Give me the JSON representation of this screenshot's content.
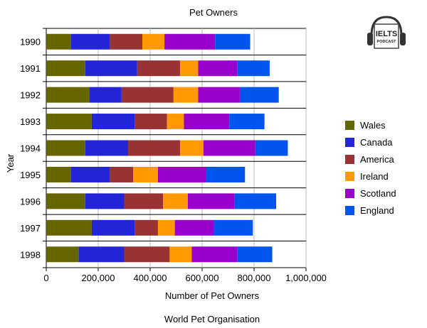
{
  "chart_data": {
    "type": "bar",
    "orientation": "horizontal",
    "stacked": true,
    "title": "Pet Owners",
    "xlabel": "Number of Pet Owners",
    "ylabel": "Year",
    "source_note": "World Pet Organisation",
    "xlim": [
      0,
      1000000
    ],
    "x_ticks": [
      "0",
      "200,000",
      "400,000",
      "600,000",
      "800,000",
      "1,000,000"
    ],
    "x_tick_values": [
      0,
      200000,
      400000,
      600000,
      800000,
      1000000
    ],
    "grid": "vertical",
    "legend_position": "right",
    "categories": [
      "1990",
      "1991",
      "1992",
      "1993",
      "1994",
      "1995",
      "1996",
      "1997",
      "1998"
    ],
    "series": [
      {
        "name": "Wales",
        "color": "#666600",
        "values": [
          95000,
          150000,
          165000,
          175000,
          150000,
          95000,
          150000,
          175000,
          125000
        ]
      },
      {
        "name": "Canada",
        "color": "#2424d8",
        "values": [
          150000,
          200000,
          125000,
          165000,
          165000,
          150000,
          150000,
          165000,
          175000
        ]
      },
      {
        "name": "America",
        "color": "#993333",
        "values": [
          125000,
          165000,
          200000,
          125000,
          200000,
          90000,
          150000,
          90000,
          175000
        ]
      },
      {
        "name": "Ireland",
        "color": "#ff9900",
        "values": [
          85000,
          70000,
          95000,
          65000,
          90000,
          95000,
          95000,
          65000,
          85000
        ]
      },
      {
        "name": "Scotland",
        "color": "#9900cc",
        "values": [
          195000,
          150000,
          160000,
          175000,
          200000,
          185000,
          180000,
          150000,
          175000
        ]
      },
      {
        "name": "England",
        "color": "#0055ee",
        "values": [
          135000,
          125000,
          150000,
          135000,
          125000,
          150000,
          160000,
          150000,
          135000
        ]
      }
    ]
  },
  "logo": {
    "line1": "IELTS",
    "line2": "PODCAST"
  }
}
